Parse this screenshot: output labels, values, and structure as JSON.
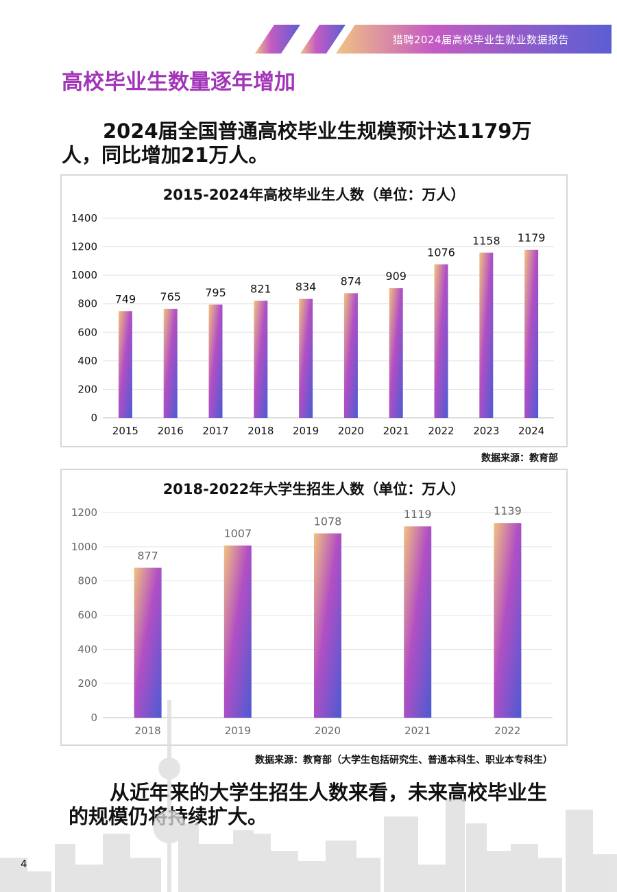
{
  "header": {
    "report_title": "猎聘2024届高校毕业生就业数据报告"
  },
  "section": {
    "title": "高校毕业生数量逐年增加"
  },
  "lead_top": "2024届全国普通高校毕业生规模预计达1179万人，同比增加21万人。",
  "lead_bottom": "从近年来的大学生招生人数来看，未来高校毕业生的规模仍将持续扩大。",
  "page_number": "4",
  "colors": {
    "accent": "#a235b8",
    "bar_top": "#f2c27e",
    "bar_mid": "#b24fc4",
    "bar_bottom": "#4b5bd3"
  },
  "chart_data": [
    {
      "type": "bar",
      "title": "2015-2024年高校毕业生人数（单位：万人）",
      "categories": [
        "2015",
        "2016",
        "2017",
        "2018",
        "2019",
        "2020",
        "2021",
        "2022",
        "2023",
        "2024"
      ],
      "values": [
        749,
        765,
        795,
        821,
        834,
        874,
        909,
        1076,
        1158,
        1179
      ],
      "yticks": [
        0,
        200,
        400,
        600,
        800,
        1000,
        1200,
        1400
      ],
      "ylim": [
        0,
        1400
      ],
      "grid": true,
      "data_labels": true,
      "source": "数据来源：教育部"
    },
    {
      "type": "bar",
      "title": "2018-2022年大学生招生人数（单位：万人）",
      "categories": [
        "2018",
        "2019",
        "2020",
        "2021",
        "2022"
      ],
      "values": [
        877,
        1007,
        1078,
        1119,
        1139
      ],
      "yticks": [
        0,
        200,
        400,
        600,
        800,
        1000,
        1200
      ],
      "ylim": [
        0,
        1200
      ],
      "grid": true,
      "data_labels": true,
      "source": "数据来源：教育部（大学生包括研究生、普通本科生、职业本专科生）"
    }
  ]
}
